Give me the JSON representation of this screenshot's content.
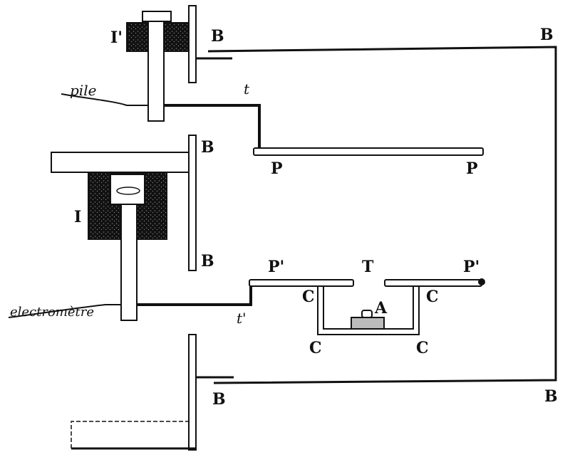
{
  "labels": {
    "I_prime": "I'",
    "I": "I",
    "B_top_left": "B",
    "B_top_right": "B",
    "B_mid_upper": "B",
    "B_mid_lower": "B",
    "B_bottom_left": "B",
    "B_bottom_right": "B",
    "pile": "pile",
    "electrometre": "electromètre",
    "t": "t",
    "t_prime": "t'",
    "P_left": "P",
    "P_right": "P",
    "P_prime_left": "P'",
    "P_prime_right": "P'",
    "T": "T",
    "C_upper_left": "C",
    "C_upper_right": "C",
    "C_lower_left": "C",
    "C_lower_right": "C",
    "A": "A"
  },
  "colors": {
    "ink": "#111111",
    "paper": "#ffffff",
    "speckle": "#2a2a2a"
  }
}
